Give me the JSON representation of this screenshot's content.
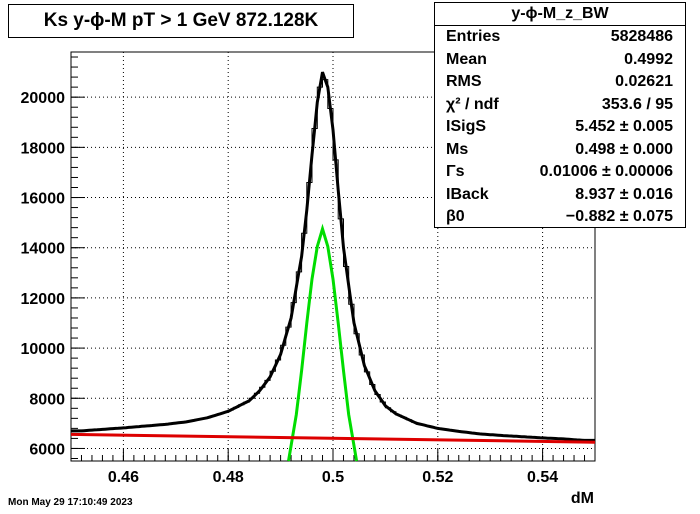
{
  "title": "Ks y-ϕ-M pT > 1 GeV  872.128K",
  "stats": {
    "name": "y-ϕ-M_z_BW",
    "rows": [
      {
        "key": "Entries",
        "value": "5828486"
      },
      {
        "key": "Mean",
        "value": "0.4992"
      },
      {
        "key": "RMS",
        "value": "0.02621"
      },
      {
        "key": "χ² / ndf",
        "value": "353.6 / 95"
      },
      {
        "key": "ISigS",
        "value": "5.452 ± 0.005"
      },
      {
        "key": "Ms",
        "value": "0.498 ± 0.000"
      },
      {
        "key": "Γs",
        "value": "0.01006 ± 0.00006"
      },
      {
        "key": "IBack",
        "value": "8.937 ± 0.016"
      },
      {
        "key": "β0",
        "value": "−0.882 ± 0.075"
      }
    ]
  },
  "date": "Mon May 29 17:10:49 2023",
  "colors": {
    "histogram": "#000000",
    "total_fit": "#000000",
    "background_fit": "#dd0000",
    "signal_fit": "#00dd00"
  },
  "chart_data": {
    "type": "line",
    "title": "Ks y-ϕ-M pT > 1 GeV  872.128K",
    "xlabel": "dM",
    "ylabel": "",
    "xlim": [
      0.45,
      0.55
    ],
    "ylim": [
      5500,
      21800
    ],
    "xticks": [
      "0.46",
      "0.48",
      "0.5",
      "0.52",
      "0.54"
    ],
    "yticks": [
      "6000",
      "8000",
      "10000",
      "12000",
      "14000",
      "16000",
      "18000",
      "20000"
    ],
    "grid": true,
    "breit_wigner_fit": {
      "M": 0.498,
      "Gamma": 0.01006,
      "S": 5.452,
      "B0": 6560,
      "B1": 6250
    },
    "series": [
      {
        "name": "y-ϕ-M_z_BW",
        "x": [
          0.452,
          0.456,
          0.46,
          0.464,
          0.468,
          0.472,
          0.476,
          0.48,
          0.484,
          0.486,
          0.488,
          0.49,
          0.492,
          0.494,
          0.495,
          0.496,
          0.497,
          0.498,
          0.499,
          0.5,
          0.501,
          0.502,
          0.504,
          0.506,
          0.508,
          0.51,
          0.512,
          0.516,
          0.52,
          0.524,
          0.528,
          0.532,
          0.536,
          0.54,
          0.544,
          0.548
        ],
        "y": [
          6700,
          6760,
          6820,
          6890,
          6960,
          7060,
          7220,
          7480,
          7900,
          8300,
          8850,
          9750,
          11200,
          13650,
          15500,
          17700,
          19800,
          21000,
          20400,
          18700,
          16300,
          14000,
          11000,
          9300,
          8300,
          7700,
          7380,
          7000,
          6800,
          6680,
          6580,
          6520,
          6470,
          6420,
          6380,
          6320
        ]
      },
      {
        "name": "signal",
        "x": [
          0.4915,
          0.493,
          0.494,
          0.495,
          0.496,
          0.497,
          0.498,
          0.499,
          0.5,
          0.501,
          0.502,
          0.503,
          0.5045
        ],
        "y": [
          5500,
          7350,
          9100,
          11000,
          12750,
          14050,
          14750,
          14050,
          12750,
          11000,
          9100,
          7350,
          5500
        ]
      },
      {
        "name": "background",
        "x": [
          0.45,
          0.55
        ],
        "y": [
          6560,
          6250
        ]
      }
    ]
  }
}
